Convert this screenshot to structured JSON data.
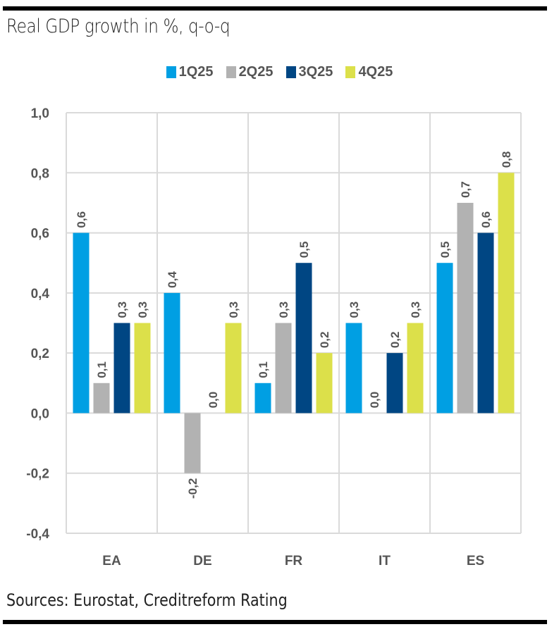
{
  "chart_data": {
    "type": "bar",
    "title": "Real GDP growth in %, q-o-q",
    "source": "Sources: Eurostat, Creditreform Rating",
    "xlabel": "",
    "ylabel": "",
    "categories": [
      "EA",
      "DE",
      "FR",
      "IT",
      "ES"
    ],
    "series": [
      {
        "name": "1Q25",
        "color": "#009FE3",
        "values": [
          0.6,
          0.4,
          0.1,
          0.3,
          0.5
        ]
      },
      {
        "name": "2Q25",
        "color": "#B2B2B2",
        "values": [
          0.1,
          -0.2,
          0.3,
          0.0,
          0.7
        ]
      },
      {
        "name": "3Q25",
        "color": "#004683",
        "values": [
          0.3,
          0.0,
          0.5,
          0.2,
          0.6
        ]
      },
      {
        "name": "4Q25",
        "color": "#DCE04A",
        "values": [
          0.3,
          0.3,
          0.2,
          0.3,
          0.8
        ]
      }
    ],
    "ylim": [
      -0.4,
      1.0
    ],
    "yticks": [
      1.0,
      0.8,
      0.6,
      0.4,
      0.2,
      0.0,
      -0.2,
      -0.4
    ],
    "ytick_labels": [
      "1,0",
      "0,8",
      "0,6",
      "0,4",
      "0,2",
      "0,0",
      "-0,2",
      "-0,4"
    ],
    "decimal_separator": ",",
    "grid": true,
    "legend_position": "top-center",
    "data_labels": true
  }
}
